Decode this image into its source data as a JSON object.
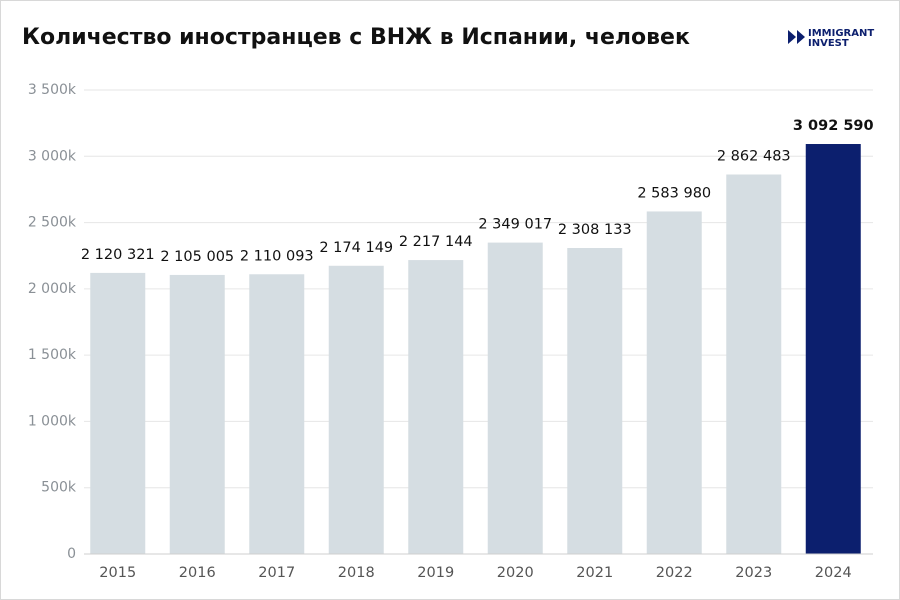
{
  "chart_data": {
    "type": "bar",
    "title": "Количество иностранцев с ВНЖ в Испании, человек",
    "logo": [
      "IMMIGRANT",
      "INVEST"
    ],
    "categories": [
      "2015",
      "2016",
      "2017",
      "2018",
      "2019",
      "2020",
      "2021",
      "2022",
      "2023",
      "2024"
    ],
    "values": [
      2120321,
      2105005,
      2110093,
      2174149,
      2217144,
      2349017,
      2308133,
      2583980,
      2862483,
      3092590
    ],
    "value_labels": [
      "2 120 321",
      "2 105 005",
      "2 110 093",
      "2 174 149",
      "2 217 144",
      "2 349 017",
      "2 308 133",
      "2 583 980",
      "2 862 483",
      "3 092 590"
    ],
    "colors": [
      "#d5dde2",
      "#d5dde2",
      "#d5dde2",
      "#d5dde2",
      "#d5dde2",
      "#d5dde2",
      "#d5dde2",
      "#d5dde2",
      "#d5dde2",
      "#0c1f6e"
    ],
    "ylim": [
      0,
      3500000
    ],
    "yticks": [
      0,
      {
        "value": 500000,
        "label": "500k"
      },
      {
        "value": 1000000,
        "label": "1 000k"
      },
      {
        "value": 1500000,
        "label": "1 500k"
      },
      {
        "value": 2000000,
        "label": "2 000k"
      },
      {
        "value": 2500000,
        "label": "2 500k"
      },
      {
        "value": 3000000,
        "label": "3 000k"
      },
      {
        "value": 3500000,
        "label": "3 500k"
      }
    ],
    "grid": true
  }
}
